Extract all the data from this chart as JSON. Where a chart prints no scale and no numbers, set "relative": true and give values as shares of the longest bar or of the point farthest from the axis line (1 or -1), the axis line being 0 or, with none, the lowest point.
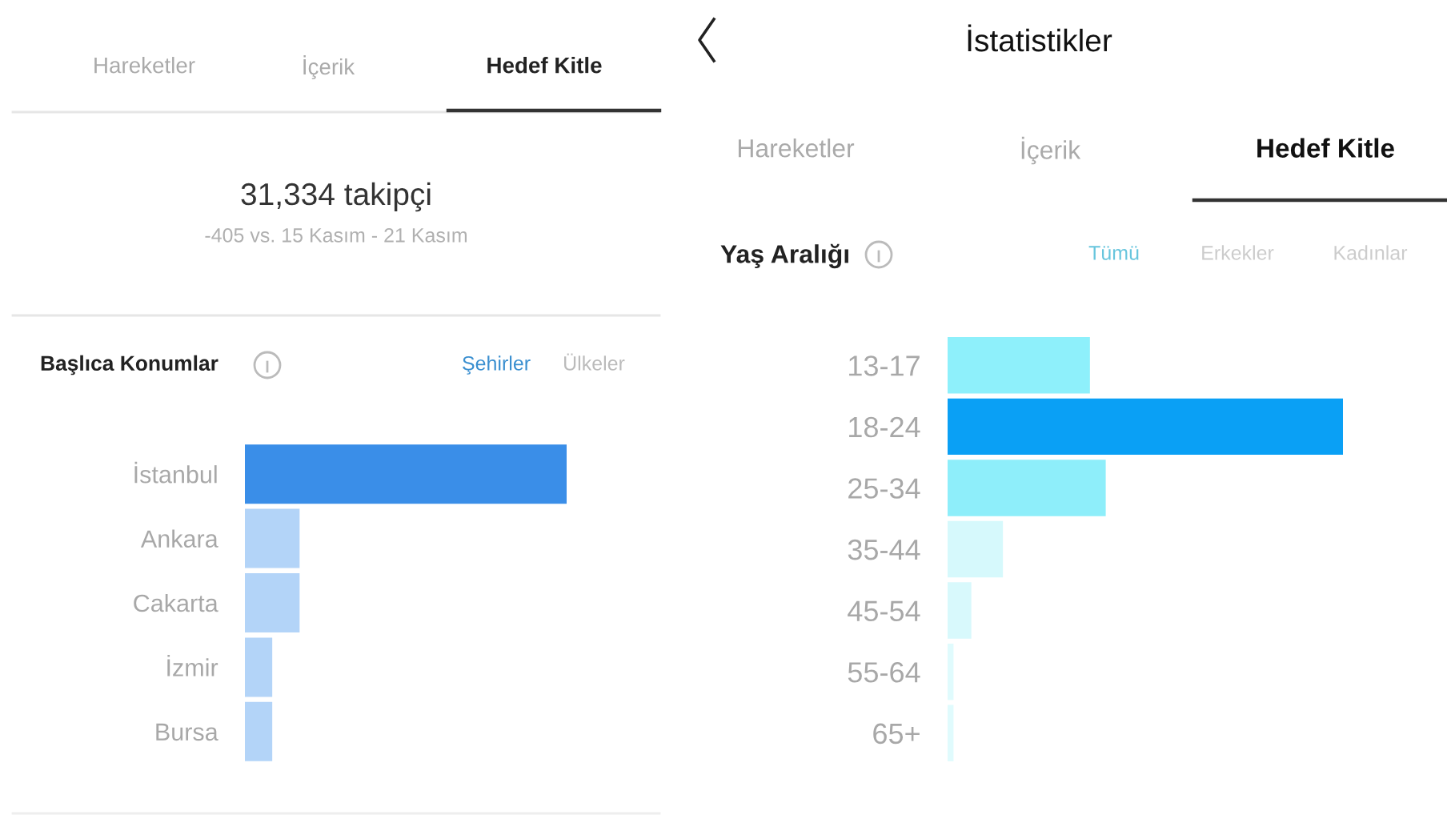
{
  "chart_data": [
    {
      "type": "bar",
      "orientation": "horizontal",
      "relative": true,
      "title": "Başlıca Konumlar",
      "categories": [
        "İstanbul",
        "Ankara",
        "Cakarta",
        "İzmir",
        "Bursa"
      ],
      "values": [
        1,
        0.17,
        0.17,
        0.085,
        0.085
      ],
      "colors": [
        "#3a8ee8",
        "#b3d4f8",
        "#b3d4f8",
        "#b3d4f8",
        "#b3d4f8"
      ],
      "annotations": [
        "Hareketler",
        "İçerik",
        "Hedef Kitle",
        "31,334 takipçi",
        "-405 vs. 15 Kasım - 21 Kasım",
        "Şehirler",
        "Ülkeler"
      ]
    },
    {
      "type": "bar",
      "orientation": "horizontal",
      "relative": true,
      "title": "Yaş Aralığı",
      "categories": [
        "13-17",
        "18-24",
        "25-34",
        "35-44",
        "45-54",
        "55-64",
        "65+"
      ],
      "values": [
        0.36,
        1,
        0.4,
        0.14,
        0.06,
        0.015,
        0.015
      ],
      "colors": [
        "#8ef0fb",
        "#0aa0f5",
        "#8eeefa",
        "#d6f9fc",
        "#d8f9fc",
        "#e0fbfd",
        "#e0fbfd"
      ],
      "annotations": [
        "İstatistikler",
        "Hareketler",
        "İçerik",
        "Hedef Kitle",
        "Tümü",
        "Erkekler",
        "Kadınlar"
      ]
    }
  ]
}
